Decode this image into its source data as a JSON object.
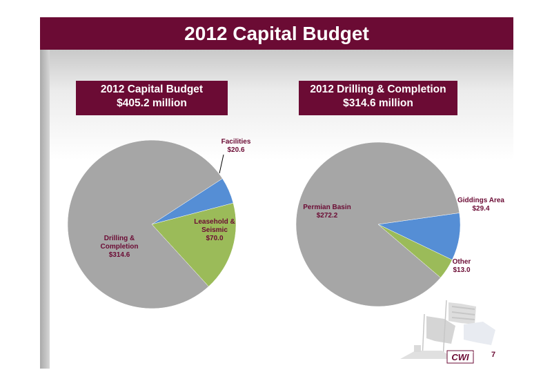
{
  "slide": {
    "title": "2012 Capital Budget",
    "page_number": "7",
    "logo_text": "CWI"
  },
  "colors": {
    "accent": "#6b0b34",
    "gray": "#a6a6a6",
    "blue": "#558ed5",
    "green": "#9bbb59"
  },
  "chart_data": [
    {
      "type": "pie",
      "title_line1": "2012 Capital Budget",
      "title_line2": "$405.2 million",
      "slices": [
        {
          "name": "Drilling & Completion",
          "value": 314.6,
          "color": "#a6a6a6",
          "label_lines": [
            "Drilling &",
            "Completion",
            "$314.6"
          ]
        },
        {
          "name": "Facilities",
          "value": 20.6,
          "color": "#558ed5",
          "label_lines": [
            "Facilities",
            "$20.6"
          ]
        },
        {
          "name": "Leasehold & Seismic",
          "value": 70.0,
          "color": "#9bbb59",
          "label_lines": [
            "Leasehold &",
            "Seismic",
            "$70.0"
          ]
        }
      ]
    },
    {
      "type": "pie",
      "title_line1": "2012 Drilling & Completion",
      "title_line2": "$314.6 million",
      "slices": [
        {
          "name": "Permian Basin",
          "value": 272.2,
          "color": "#a6a6a6",
          "label_lines": [
            "Permian Basin",
            "$272.2"
          ]
        },
        {
          "name": "Giddings Area",
          "value": 29.4,
          "color": "#558ed5",
          "label_lines": [
            "Giddings Area",
            "$29.4"
          ]
        },
        {
          "name": "Other",
          "value": 13.0,
          "color": "#9bbb59",
          "label_lines": [
            "Other",
            "$13.0"
          ]
        }
      ]
    }
  ]
}
